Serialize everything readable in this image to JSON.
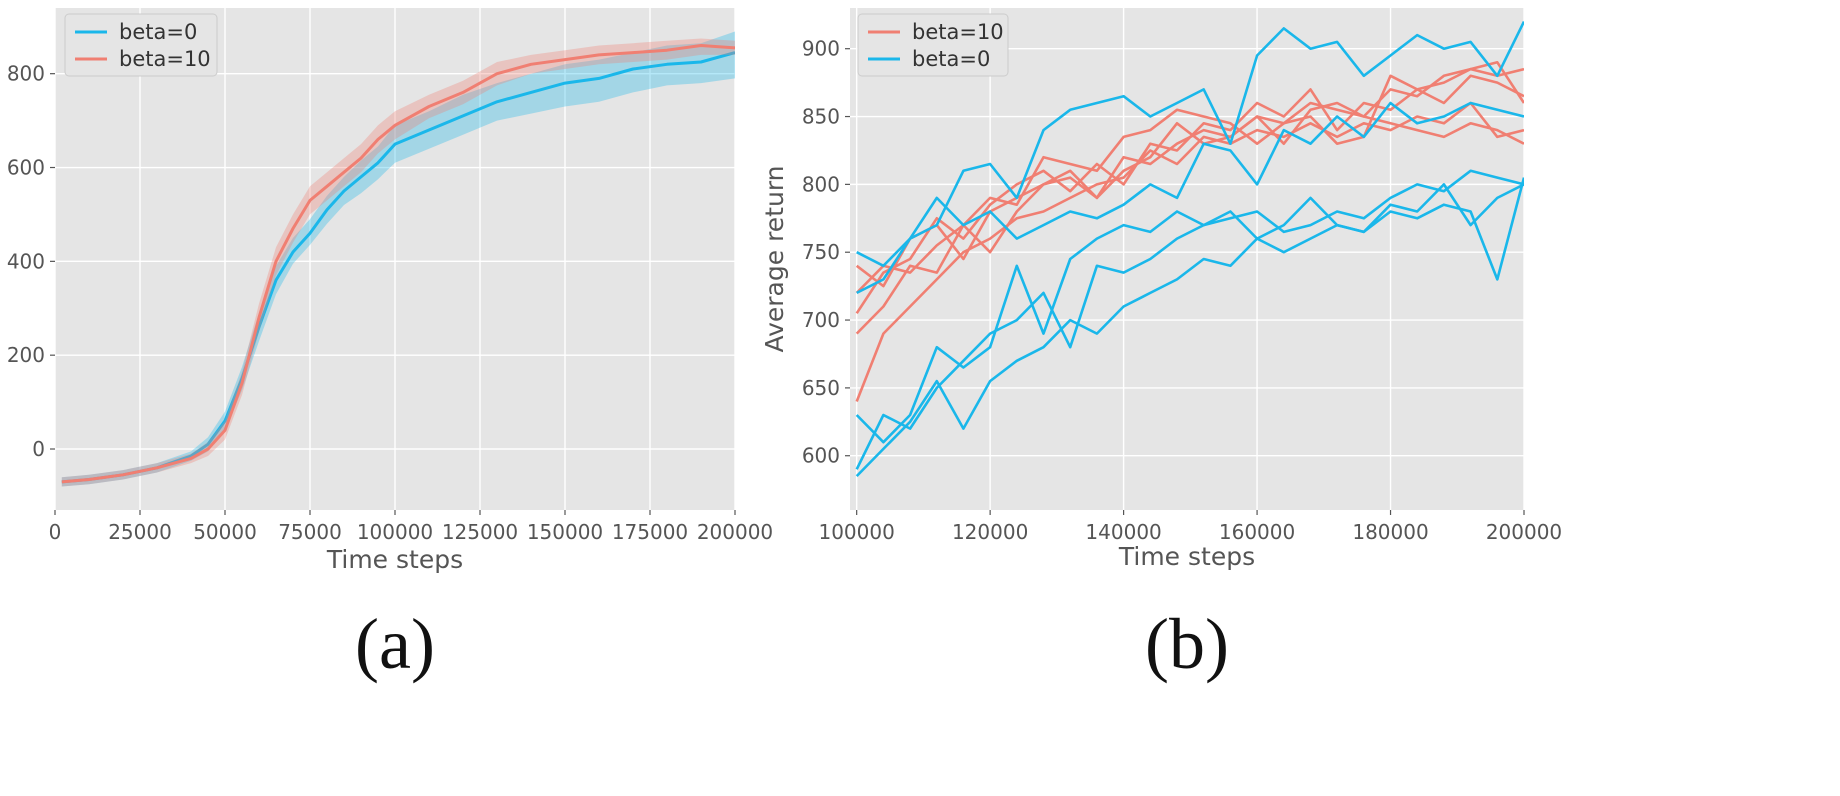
{
  "chart_data": [
    {
      "panel_label": "(a)",
      "type": "line",
      "xlabel": "Time steps",
      "ylabel": "",
      "xlim": [
        0,
        200000
      ],
      "ylim": [
        -130,
        940
      ],
      "xticks": [
        0,
        25000,
        50000,
        75000,
        100000,
        125000,
        150000,
        175000,
        200000
      ],
      "xtick_labels": [
        "0",
        "25000",
        "50000",
        "75000",
        "100000",
        "125000",
        "150000",
        "175000",
        "200000"
      ],
      "yticks": [
        0,
        200,
        400,
        600,
        800
      ],
      "ytick_labels": [
        "0",
        "200",
        "400",
        "600",
        "800"
      ],
      "grid": true,
      "legend": "top-left",
      "x": [
        2000,
        10000,
        20000,
        30000,
        40000,
        45000,
        50000,
        55000,
        60000,
        65000,
        70000,
        75000,
        80000,
        85000,
        90000,
        95000,
        100000,
        110000,
        120000,
        130000,
        140000,
        150000,
        160000,
        170000,
        180000,
        190000,
        200000
      ],
      "series": [
        {
          "name": "beta=0",
          "color": "#1ab7ea",
          "mean": [
            -70,
            -65,
            -55,
            -40,
            -15,
            10,
            60,
            150,
            260,
            360,
            420,
            460,
            510,
            550,
            580,
            610,
            650,
            680,
            710,
            740,
            760,
            780,
            790,
            810,
            820,
            825,
            845
          ],
          "lower": [
            -80,
            -75,
            -65,
            -50,
            -25,
            -5,
            40,
            125,
            230,
            330,
            395,
            435,
            480,
            520,
            545,
            575,
            610,
            640,
            670,
            700,
            715,
            730,
            740,
            760,
            775,
            780,
            790
          ],
          "upper": [
            -60,
            -55,
            -45,
            -30,
            -5,
            25,
            80,
            175,
            290,
            390,
            450,
            490,
            540,
            580,
            615,
            645,
            690,
            720,
            755,
            780,
            800,
            820,
            830,
            845,
            860,
            865,
            890
          ]
        },
        {
          "name": "beta=10",
          "color": "#f07f72",
          "mean": [
            -70,
            -65,
            -55,
            -40,
            -20,
            0,
            40,
            140,
            280,
            400,
            470,
            530,
            560,
            590,
            620,
            660,
            690,
            730,
            760,
            800,
            820,
            830,
            840,
            845,
            850,
            860,
            855
          ],
          "lower": [
            -80,
            -75,
            -65,
            -50,
            -30,
            -15,
            20,
            115,
            250,
            370,
            440,
            500,
            530,
            560,
            590,
            630,
            660,
            705,
            735,
            775,
            800,
            810,
            820,
            825,
            830,
            840,
            840
          ],
          "upper": [
            -60,
            -55,
            -45,
            -30,
            -10,
            15,
            60,
            165,
            310,
            430,
            500,
            560,
            590,
            620,
            650,
            690,
            720,
            755,
            785,
            825,
            840,
            850,
            860,
            865,
            870,
            875,
            870
          ]
        }
      ]
    },
    {
      "panel_label": "(b)",
      "type": "line",
      "xlabel": "Time steps",
      "ylabel": "Average return",
      "xlim": [
        99000,
        200000
      ],
      "ylim": [
        560,
        930
      ],
      "xticks": [
        100000,
        120000,
        140000,
        160000,
        180000,
        200000
      ],
      "xtick_labels": [
        "100000",
        "120000",
        "140000",
        "160000",
        "180000",
        "200000"
      ],
      "yticks": [
        600,
        650,
        700,
        750,
        800,
        850,
        900
      ],
      "ytick_labels": [
        "600",
        "650",
        "700",
        "750",
        "800",
        "850",
        "900"
      ],
      "grid": true,
      "legend": "top-left",
      "x": [
        100000,
        104000,
        108000,
        112000,
        116000,
        120000,
        124000,
        128000,
        132000,
        136000,
        140000,
        144000,
        148000,
        152000,
        156000,
        160000,
        164000,
        168000,
        172000,
        176000,
        180000,
        184000,
        188000,
        192000,
        196000,
        200000
      ],
      "series": [
        {
          "name": "beta=10",
          "color": "#f07f72",
          "values": [
            740,
            725,
            760,
            770,
            745,
            780,
            790,
            800,
            810,
            790,
            820,
            815,
            830,
            840,
            835,
            850,
            845,
            860,
            855,
            850,
            870,
            865,
            880,
            885,
            880,
            885
          ]
        },
        {
          "name": "",
          "color": "#f07f72",
          "values": [
            705,
            735,
            745,
            775,
            760,
            785,
            800,
            810,
            795,
            815,
            800,
            830,
            825,
            845,
            840,
            860,
            850,
            870,
            840,
            860,
            855,
            870,
            860,
            880,
            875,
            865
          ]
        },
        {
          "name": "",
          "color": "#f07f72",
          "values": [
            690,
            710,
            740,
            735,
            770,
            750,
            780,
            800,
            805,
            790,
            810,
            820,
            845,
            830,
            835,
            850,
            830,
            855,
            860,
            850,
            845,
            840,
            835,
            845,
            840,
            830
          ]
        },
        {
          "name": "",
          "color": "#f07f72",
          "values": [
            640,
            690,
            710,
            730,
            750,
            760,
            775,
            780,
            790,
            800,
            805,
            825,
            815,
            835,
            830,
            840,
            835,
            845,
            835,
            845,
            840,
            850,
            845,
            860,
            835,
            840
          ]
        },
        {
          "name": "",
          "color": "#f07f72",
          "values": [
            720,
            740,
            735,
            755,
            770,
            790,
            785,
            820,
            815,
            810,
            835,
            840,
            855,
            850,
            845,
            830,
            845,
            850,
            830,
            835,
            880,
            870,
            875,
            885,
            890,
            860
          ]
        },
        {
          "name": "beta=0",
          "color": "#1ab7ea",
          "values": [
            750,
            740,
            760,
            770,
            810,
            815,
            790,
            840,
            855,
            860,
            865,
            850,
            860,
            870,
            830,
            895,
            915,
            900,
            905,
            880,
            895,
            910,
            900,
            905,
            880,
            920
          ]
        },
        {
          "name": "",
          "color": "#1ab7ea",
          "values": [
            720,
            730,
            760,
            790,
            770,
            780,
            760,
            770,
            780,
            775,
            785,
            800,
            790,
            830,
            825,
            800,
            840,
            830,
            850,
            835,
            860,
            845,
            850,
            860,
            855,
            850
          ]
        },
        {
          "name": "",
          "color": "#1ab7ea",
          "values": [
            590,
            630,
            620,
            650,
            670,
            690,
            700,
            720,
            680,
            740,
            735,
            745,
            760,
            770,
            775,
            780,
            765,
            770,
            780,
            775,
            790,
            800,
            795,
            810,
            805,
            800
          ]
        },
        {
          "name": "",
          "color": "#1ab7ea",
          "values": [
            630,
            610,
            630,
            680,
            665,
            680,
            740,
            690,
            745,
            760,
            770,
            765,
            780,
            770,
            780,
            760,
            770,
            790,
            770,
            765,
            785,
            780,
            800,
            770,
            790,
            800
          ]
        },
        {
          "name": "",
          "color": "#1ab7ea",
          "values": [
            585,
            605,
            625,
            655,
            620,
            655,
            670,
            680,
            700,
            690,
            710,
            720,
            730,
            745,
            740,
            760,
            750,
            760,
            770,
            765,
            780,
            775,
            785,
            780,
            730,
            805
          ]
        }
      ]
    }
  ]
}
